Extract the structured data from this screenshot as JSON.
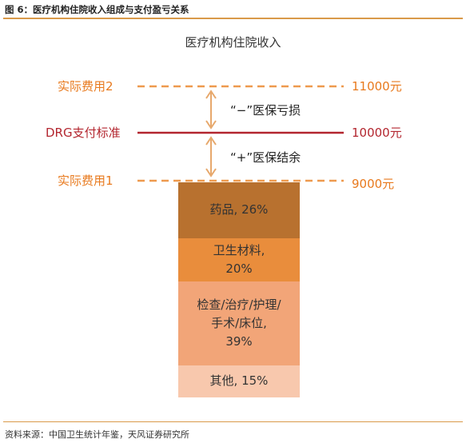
{
  "header": {
    "figure_title": "图 6：医疗机构住院收入组成与支付盈亏关系"
  },
  "diagram": {
    "title": "医疗机构住院收入",
    "levels": [
      {
        "label": "实际费用2",
        "value": "11000元",
        "color": "#e87a1e",
        "line_style": "dashed"
      },
      {
        "label": "DRG支付标准",
        "value": "10000元",
        "color": "#b3262f",
        "line_style": "solid"
      },
      {
        "label": "实际费用1",
        "value": "9000元",
        "color": "#e87a1e",
        "line_style": "dashed"
      }
    ],
    "annotations": {
      "loss": "“−”医保亏损",
      "surplus": "“+”医保结余"
    },
    "segments": [
      {
        "lines": [
          "药品, 26%"
        ],
        "share": 26,
        "color": "#b8712f"
      },
      {
        "lines": [
          "卫生材料,",
          "20%"
        ],
        "share": 20,
        "color": "#e98d3c"
      },
      {
        "lines": [
          "检查/治疗/护理/",
          "手术/床位,",
          "39%"
        ],
        "share": 39,
        "color": "#f2a578"
      },
      {
        "lines": [
          "其他, 15%"
        ],
        "share": 15,
        "color": "#f8c8ad"
      }
    ]
  },
  "footer": {
    "source": "资料来源：中国卫生统计年鉴，天风证券研究所"
  }
}
